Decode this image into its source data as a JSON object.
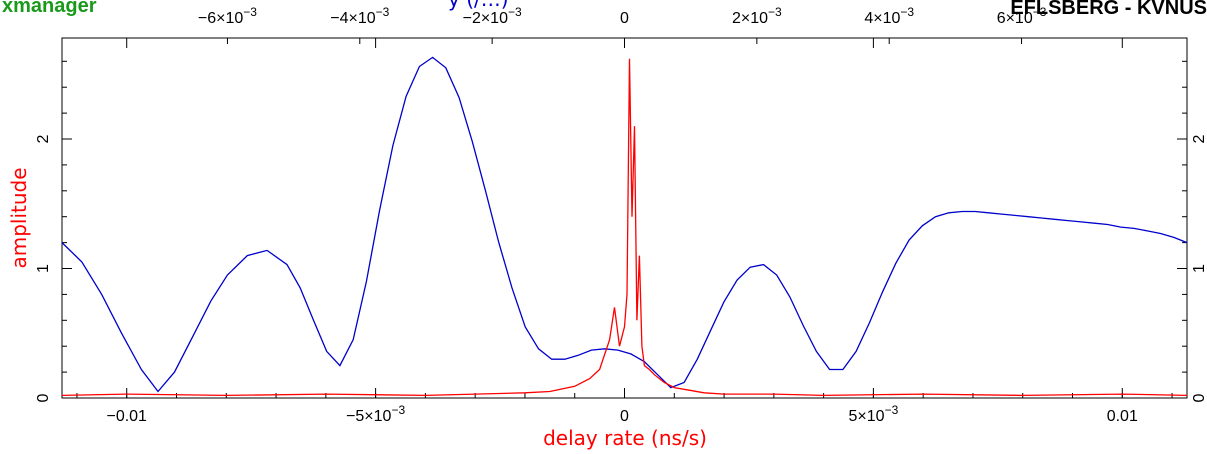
{
  "header": {
    "app_name": "xmanager",
    "baseline": "EFLSBERG - KVNUS",
    "top_axis_label_fragment": "y (/…)"
  },
  "colors": {
    "app_name": "#1a9a1a",
    "frame": "#000000",
    "amplitude_series": "#ff0000",
    "delay_series": "#0000cc"
  },
  "chart_data": {
    "type": "line",
    "xlabel": "delay rate (ns/s)",
    "ylabel": "amplitude",
    "bottom_axis": {
      "range": [
        -0.0113,
        0.0113
      ],
      "ticks": [
        {
          "value": -0.01,
          "label": "−0.01"
        },
        {
          "value": -0.005,
          "label": "−5×10",
          "exp": "−3"
        },
        {
          "value": 0,
          "label": "0"
        },
        {
          "value": 0.005,
          "label": "5×10",
          "exp": "−3"
        },
        {
          "value": 0.01,
          "label": "0.01"
        }
      ]
    },
    "top_axis": {
      "range": [
        -0.0085,
        0.0085
      ],
      "ticks": [
        {
          "value": -0.006,
          "label": "−6×10",
          "exp": "−3"
        },
        {
          "value": -0.004,
          "label": "−4×10",
          "exp": "−3"
        },
        {
          "value": -0.002,
          "label": "−2×10",
          "exp": "−3"
        },
        {
          "value": 0,
          "label": "0"
        },
        {
          "value": 0.002,
          "label": "2×10",
          "exp": "−3"
        },
        {
          "value": 0.004,
          "label": "4×10",
          "exp": "−3"
        },
        {
          "value": 0.006,
          "label": "6×10",
          "exp": "−3"
        }
      ]
    },
    "y_axis": {
      "range": [
        0,
        2.78
      ],
      "ticks": [
        {
          "value": 0,
          "label": "0"
        },
        {
          "value": 1,
          "label": "1"
        },
        {
          "value": 2,
          "label": "2"
        }
      ]
    },
    "series": [
      {
        "color": "#0000cc",
        "axis": "top",
        "x": [
          -0.0085,
          -0.0082,
          -0.0079,
          -0.0076,
          -0.0073,
          -0.00705,
          -0.0068,
          -0.0065,
          -0.00625,
          -0.006,
          -0.0057,
          -0.0054,
          -0.0051,
          -0.0049,
          -0.0047,
          -0.0045,
          -0.0043,
          -0.0041,
          -0.0039,
          -0.0037,
          -0.0035,
          -0.0033,
          -0.0031,
          -0.0029,
          -0.0027,
          -0.0025,
          -0.0023,
          -0.0021,
          -0.0019,
          -0.0017,
          -0.0015,
          -0.0013,
          -0.0011,
          -0.0009,
          -0.0007,
          -0.0005,
          -0.0003,
          -0.0001,
          0.0001,
          0.0003,
          0.0005,
          0.0007,
          0.0009,
          0.0011,
          0.0013,
          0.0015,
          0.0017,
          0.0019,
          0.0021,
          0.0023,
          0.0025,
          0.0027,
          0.0029,
          0.0031,
          0.0033,
          0.0035,
          0.0037,
          0.0039,
          0.0041,
          0.0043,
          0.0045,
          0.0047,
          0.0049,
          0.0051,
          0.0053,
          0.0055,
          0.0057,
          0.0059,
          0.0061,
          0.0063,
          0.0065,
          0.0067,
          0.0069,
          0.0071,
          0.0073,
          0.0075,
          0.0077,
          0.0079,
          0.0081,
          0.0083,
          0.0085
        ],
        "y": [
          1.2,
          1.05,
          0.8,
          0.5,
          0.22,
          0.05,
          0.2,
          0.5,
          0.75,
          0.95,
          1.1,
          1.14,
          1.03,
          0.85,
          0.6,
          0.36,
          0.25,
          0.45,
          0.9,
          1.45,
          1.95,
          2.33,
          2.56,
          2.63,
          2.55,
          2.32,
          1.98,
          1.6,
          1.2,
          0.85,
          0.55,
          0.38,
          0.3,
          0.3,
          0.33,
          0.37,
          0.38,
          0.37,
          0.34,
          0.28,
          0.18,
          0.08,
          0.12,
          0.3,
          0.52,
          0.74,
          0.91,
          1.01,
          1.03,
          0.95,
          0.78,
          0.56,
          0.36,
          0.22,
          0.22,
          0.36,
          0.58,
          0.82,
          1.04,
          1.22,
          1.33,
          1.4,
          1.43,
          1.44,
          1.44,
          1.43,
          1.42,
          1.41,
          1.4,
          1.39,
          1.38,
          1.37,
          1.36,
          1.35,
          1.34,
          1.32,
          1.31,
          1.29,
          1.27,
          1.24,
          1.2
        ]
      },
      {
        "color": "#ff0000",
        "axis": "bottom",
        "x": [
          -0.0113,
          -0.01,
          -0.008,
          -0.006,
          -0.004,
          -0.003,
          -0.002,
          -0.0015,
          -0.001,
          -0.0007,
          -0.0005,
          -0.0003,
          -0.0002,
          -0.0001,
          0,
          5e-05,
          0.0001,
          0.00015,
          0.0002,
          0.00025,
          0.0003,
          0.00035,
          0.0004,
          0.0005,
          0.0006,
          0.0008,
          0.001,
          0.0013,
          0.0016,
          0.002,
          0.003,
          0.004,
          0.006,
          0.008,
          0.01,
          0.0113
        ],
        "y": [
          0.02,
          0.03,
          0.02,
          0.03,
          0.02,
          0.03,
          0.04,
          0.05,
          0.09,
          0.15,
          0.22,
          0.45,
          0.7,
          0.4,
          0.55,
          0.8,
          2.62,
          1.4,
          2.1,
          0.6,
          1.1,
          0.4,
          0.25,
          0.22,
          0.18,
          0.12,
          0.08,
          0.06,
          0.04,
          0.03,
          0.03,
          0.02,
          0.03,
          0.02,
          0.03,
          0.02
        ]
      }
    ]
  }
}
